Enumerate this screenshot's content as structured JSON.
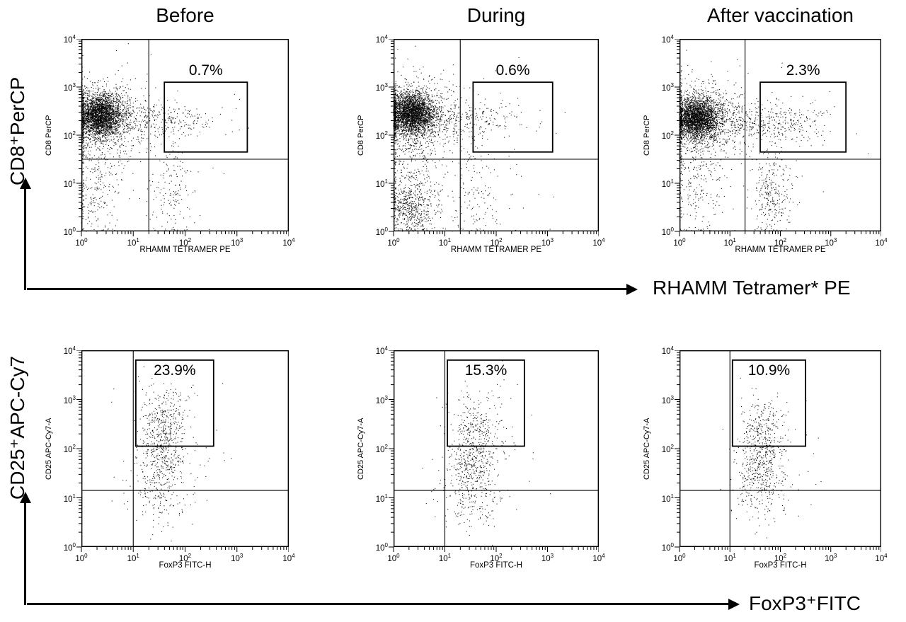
{
  "figure": {
    "row1": {
      "y_label": "CD8⁺PerCP",
      "x_label": "RHAMM Tetramer* PE"
    },
    "row2": {
      "y_label": "CD25⁺APC-Cy7",
      "x_label": "FoxP3⁺FITC"
    }
  },
  "chart_data": [
    {
      "type": "scatter",
      "title": "Before",
      "xlabel": "RHAMM TETRAMER PE",
      "ylabel": "CD8 PerCP",
      "xscale": "log",
      "yscale": "log",
      "xlim": [
        1,
        10000
      ],
      "ylim": [
        1,
        10000
      ],
      "xticks": [
        "10^0",
        "10^1",
        "10^2",
        "10^3",
        "10^4"
      ],
      "yticks": [
        "10^0",
        "10^1",
        "10^2",
        "10^3",
        "10^4"
      ],
      "quadrant": {
        "x": 1.3,
        "y": 1.5
      },
      "gate": {
        "x0": 1.6,
        "x1": 3.2,
        "y0": 1.65,
        "y1": 3.1,
        "label": "0.7%"
      },
      "seed": 1,
      "clusters": [
        {
          "cx": 0.35,
          "cy": 2.4,
          "sx": 0.22,
          "sy": 0.22,
          "n": 2600
        },
        {
          "cx": 0.4,
          "cy": 2.35,
          "sx": 0.45,
          "sy": 0.4,
          "n": 900
        },
        {
          "cx": 1.6,
          "cy": 2.3,
          "sx": 0.55,
          "sy": 0.18,
          "n": 260
        },
        {
          "cx": 0.25,
          "cy": 0.9,
          "sx": 0.3,
          "sy": 0.55,
          "n": 260
        },
        {
          "cx": 1.75,
          "cy": 0.9,
          "sx": 0.2,
          "sy": 0.5,
          "n": 140
        },
        {
          "cx": 1.2,
          "cy": 1.6,
          "sx": 1.0,
          "sy": 1.0,
          "n": 80
        }
      ]
    },
    {
      "type": "scatter",
      "title": "During",
      "xlabel": "RHAMM TETRAMER PE",
      "ylabel": "CD8 PerCP",
      "xscale": "log",
      "yscale": "log",
      "xlim": [
        1,
        10000
      ],
      "ylim": [
        1,
        10000
      ],
      "xticks": [
        "10^0",
        "10^1",
        "10^2",
        "10^3",
        "10^4"
      ],
      "yticks": [
        "10^0",
        "10^1",
        "10^2",
        "10^3",
        "10^4"
      ],
      "quadrant": {
        "x": 1.3,
        "y": 1.5
      },
      "gate": {
        "x0": 1.55,
        "x1": 3.1,
        "y0": 1.65,
        "y1": 3.1,
        "label": "0.6%"
      },
      "seed": 2,
      "clusters": [
        {
          "cx": 0.35,
          "cy": 2.45,
          "sx": 0.22,
          "sy": 0.22,
          "n": 2600
        },
        {
          "cx": 0.4,
          "cy": 2.4,
          "sx": 0.45,
          "sy": 0.4,
          "n": 900
        },
        {
          "cx": 1.5,
          "cy": 2.35,
          "sx": 0.5,
          "sy": 0.18,
          "n": 220
        },
        {
          "cx": 0.35,
          "cy": 0.5,
          "sx": 0.25,
          "sy": 0.28,
          "n": 500
        },
        {
          "cx": 0.3,
          "cy": 1.3,
          "sx": 0.3,
          "sy": 0.6,
          "n": 300
        },
        {
          "cx": 1.6,
          "cy": 0.8,
          "sx": 0.25,
          "sy": 0.5,
          "n": 120
        },
        {
          "cx": 1.2,
          "cy": 1.5,
          "sx": 1.0,
          "sy": 1.0,
          "n": 80
        }
      ]
    },
    {
      "type": "scatter",
      "title": "After vaccination",
      "xlabel": "RHAMM TETRAMER PE",
      "ylabel": "CD8 PerCP",
      "xscale": "log",
      "yscale": "log",
      "xlim": [
        1,
        10000
      ],
      "ylim": [
        1,
        10000
      ],
      "xticks": [
        "10^0",
        "10^1",
        "10^2",
        "10^3",
        "10^4"
      ],
      "yticks": [
        "10^0",
        "10^1",
        "10^2",
        "10^3",
        "10^4"
      ],
      "quadrant": {
        "x": 1.3,
        "y": 1.5
      },
      "gate": {
        "x0": 1.6,
        "x1": 3.3,
        "y0": 1.65,
        "y1": 3.1,
        "label": "2.3%"
      },
      "seed": 3,
      "clusters": [
        {
          "cx": 0.35,
          "cy": 2.35,
          "sx": 0.22,
          "sy": 0.22,
          "n": 2600
        },
        {
          "cx": 0.45,
          "cy": 2.3,
          "sx": 0.5,
          "sy": 0.4,
          "n": 900
        },
        {
          "cx": 1.8,
          "cy": 2.25,
          "sx": 0.6,
          "sy": 0.2,
          "n": 380
        },
        {
          "cx": 0.3,
          "cy": 0.9,
          "sx": 0.3,
          "sy": 0.55,
          "n": 220
        },
        {
          "cx": 1.85,
          "cy": 0.75,
          "sx": 0.18,
          "sy": 0.45,
          "n": 260
        },
        {
          "cx": 1.3,
          "cy": 1.5,
          "sx": 1.0,
          "sy": 1.0,
          "n": 90
        }
      ]
    },
    {
      "type": "scatter",
      "title": "",
      "xlabel": "FoxP3 FITC-H",
      "ylabel": "CD25 APC-Cy7-A",
      "xscale": "log",
      "yscale": "log",
      "xlim": [
        1,
        10000
      ],
      "ylim": [
        1,
        10000
      ],
      "xticks": [
        "10^0",
        "10^1",
        "10^2",
        "10^3",
        "10^4"
      ],
      "yticks": [
        "10^0",
        "10^1",
        "10^2",
        "10^3",
        "10^4"
      ],
      "quadrant": {
        "x": 1.0,
        "y": 1.15
      },
      "gate": {
        "x0": 1.05,
        "x1": 2.55,
        "y0": 2.05,
        "y1": 3.8,
        "label": "23.9%"
      },
      "seed": 4,
      "clusters": [
        {
          "cx": 1.55,
          "cy": 1.95,
          "sx": 0.22,
          "sy": 0.55,
          "n": 480
        },
        {
          "cx": 1.62,
          "cy": 2.55,
          "sx": 0.25,
          "sy": 0.28,
          "n": 130
        },
        {
          "cx": 1.6,
          "cy": 3.1,
          "sx": 0.28,
          "sy": 0.2,
          "n": 35
        },
        {
          "cx": 1.5,
          "cy": 1.1,
          "sx": 0.35,
          "sy": 0.4,
          "n": 90
        },
        {
          "cx": 1.8,
          "cy": 2.0,
          "sx": 0.5,
          "sy": 0.8,
          "n": 60
        }
      ]
    },
    {
      "type": "scatter",
      "title": "",
      "xlabel": "FoxP3 FITC-H",
      "ylabel": "CD25 APC-Cy7-A",
      "xscale": "log",
      "yscale": "log",
      "xlim": [
        1,
        10000
      ],
      "ylim": [
        1,
        10000
      ],
      "xticks": [
        "10^0",
        "10^1",
        "10^2",
        "10^3",
        "10^4"
      ],
      "yticks": [
        "10^0",
        "10^1",
        "10^2",
        "10^3",
        "10^4"
      ],
      "quadrant": {
        "x": 1.0,
        "y": 1.15
      },
      "gate": {
        "x0": 1.05,
        "x1": 2.55,
        "y0": 2.05,
        "y1": 3.8,
        "label": "15.3%"
      },
      "seed": 5,
      "clusters": [
        {
          "cx": 1.55,
          "cy": 1.8,
          "sx": 0.25,
          "sy": 0.55,
          "n": 500
        },
        {
          "cx": 1.6,
          "cy": 2.5,
          "sx": 0.25,
          "sy": 0.28,
          "n": 100
        },
        {
          "cx": 1.6,
          "cy": 3.0,
          "sx": 0.3,
          "sy": 0.2,
          "n": 20
        },
        {
          "cx": 1.5,
          "cy": 1.0,
          "sx": 0.35,
          "sy": 0.4,
          "n": 90
        },
        {
          "cx": 1.8,
          "cy": 1.9,
          "sx": 0.5,
          "sy": 0.8,
          "n": 60
        }
      ]
    },
    {
      "type": "scatter",
      "title": "",
      "xlabel": "FoxP3 FITC-H",
      "ylabel": "CD25 APC-Cy7-A",
      "xscale": "log",
      "yscale": "log",
      "xlim": [
        1,
        10000
      ],
      "ylim": [
        1,
        10000
      ],
      "xticks": [
        "10^0",
        "10^1",
        "10^2",
        "10^3",
        "10^4"
      ],
      "yticks": [
        "10^0",
        "10^1",
        "10^2",
        "10^3",
        "10^4"
      ],
      "quadrant": {
        "x": 1.0,
        "y": 1.15
      },
      "gate": {
        "x0": 1.05,
        "x1": 2.5,
        "y0": 2.05,
        "y1": 3.8,
        "label": "10.9%"
      },
      "seed": 6,
      "clusters": [
        {
          "cx": 1.62,
          "cy": 1.75,
          "sx": 0.22,
          "sy": 0.5,
          "n": 470
        },
        {
          "cx": 1.68,
          "cy": 2.45,
          "sx": 0.22,
          "sy": 0.25,
          "n": 80
        },
        {
          "cx": 1.65,
          "cy": 3.0,
          "sx": 0.25,
          "sy": 0.18,
          "n": 14
        },
        {
          "cx": 1.55,
          "cy": 1.0,
          "sx": 0.3,
          "sy": 0.35,
          "n": 80
        },
        {
          "cx": 1.85,
          "cy": 1.9,
          "sx": 0.45,
          "sy": 0.7,
          "n": 50
        }
      ]
    }
  ]
}
